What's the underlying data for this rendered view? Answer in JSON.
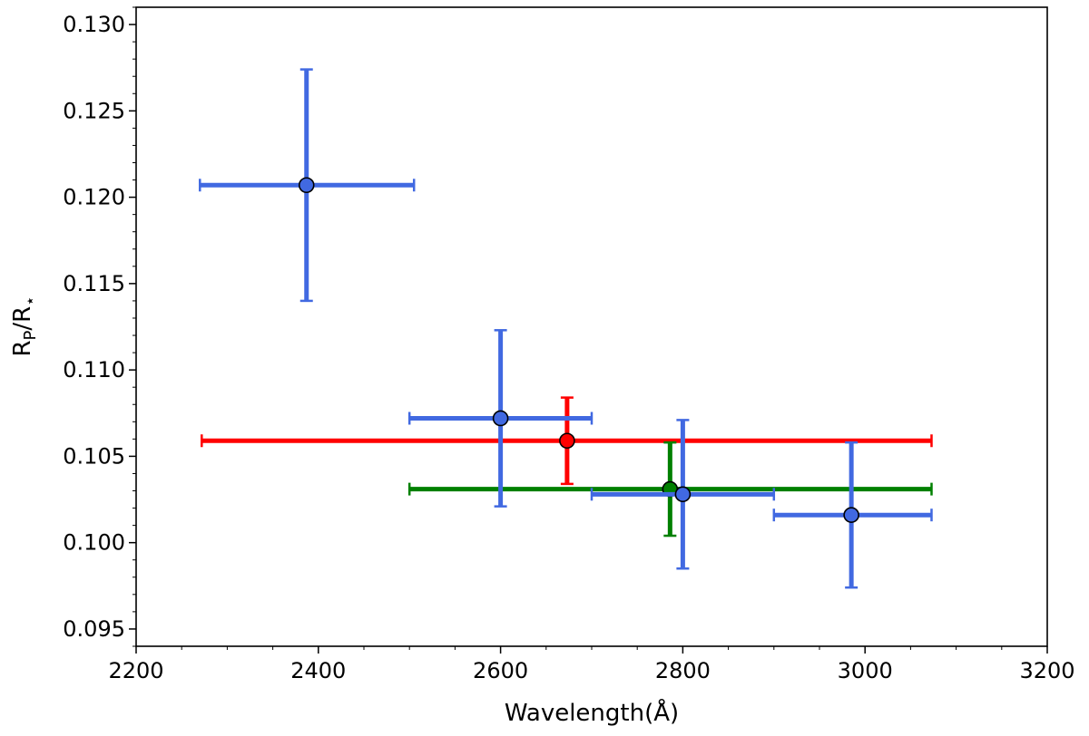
{
  "chart_data": {
    "type": "scatter",
    "title": "",
    "xlabel": "Wavelength(Å)",
    "ylabel": {
      "main": "R",
      "sub1": "P",
      "mid": "/R",
      "sub2": "⋆"
    },
    "xlim": [
      2200,
      3200
    ],
    "ylim": [
      0.094,
      0.131
    ],
    "x_ticks": [
      {
        "value": 2200,
        "label": "2200"
      },
      {
        "value": 2400,
        "label": "2400"
      },
      {
        "value": 2600,
        "label": "2600"
      },
      {
        "value": 2800,
        "label": "2800"
      },
      {
        "value": 3000,
        "label": "3000"
      },
      {
        "value": 3200,
        "label": "3200"
      }
    ],
    "y_ticks": [
      {
        "value": 0.095,
        "label": "0.095"
      },
      {
        "value": 0.1,
        "label": "0.100"
      },
      {
        "value": 0.105,
        "label": "0.105"
      },
      {
        "value": 0.11,
        "label": "0.110"
      },
      {
        "value": 0.115,
        "label": "0.115"
      },
      {
        "value": 0.12,
        "label": "0.120"
      },
      {
        "value": 0.125,
        "label": "0.125"
      },
      {
        "value": 0.13,
        "label": "0.130"
      }
    ],
    "grid": false,
    "legend": "none",
    "series": [
      {
        "color": "#ff0000",
        "points": [
          {
            "x": 2673,
            "y": 0.1059,
            "xerr_low": 2272,
            "xerr_high": 3073,
            "yerr_low": 0.1034,
            "yerr_high": 0.1084
          }
        ]
      },
      {
        "color": "#008000",
        "points": [
          {
            "x": 2786,
            "y": 0.1031,
            "xerr_low": 2500,
            "xerr_high": 3073,
            "yerr_low": 0.1004,
            "yerr_high": 0.1058
          }
        ]
      },
      {
        "color": "#4169e1",
        "points": [
          {
            "x": 2387,
            "y": 0.1207,
            "xerr_low": 2270,
            "xerr_high": 2505,
            "yerr_low": 0.114,
            "yerr_high": 0.1274
          },
          {
            "x": 2600,
            "y": 0.1072,
            "xerr_low": 2500,
            "xerr_high": 2700,
            "yerr_low": 0.1021,
            "yerr_high": 0.1123
          },
          {
            "x": 2800,
            "y": 0.1028,
            "xerr_low": 2700,
            "xerr_high": 2900,
            "yerr_low": 0.0985,
            "yerr_high": 0.1071
          },
          {
            "x": 2985,
            "y": 0.1016,
            "xerr_low": 2900,
            "xerr_high": 3073,
            "yerr_low": 0.0974,
            "yerr_high": 0.1058
          }
        ]
      }
    ]
  }
}
